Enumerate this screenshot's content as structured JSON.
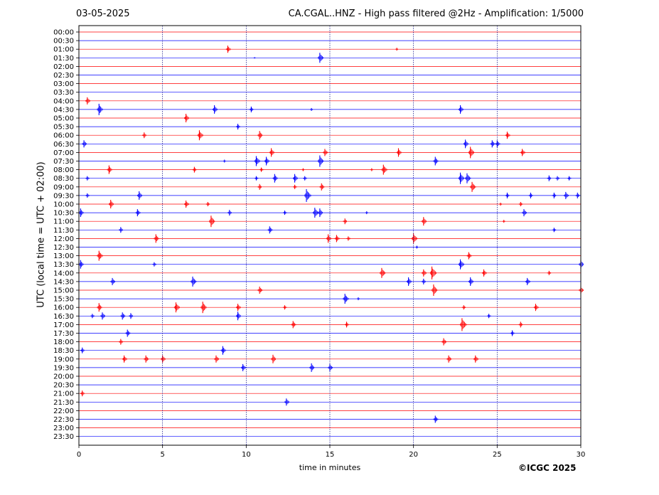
{
  "header": {
    "date": "03-05-2025",
    "title": "CA.CGAL..HNZ - High pass filtered @2Hz - Amplification: 1/5000"
  },
  "footer": {
    "xlabel": "time in minutes",
    "copyright": "©ICGC 2025"
  },
  "chart_data": {
    "type": "line",
    "title": "CA.CGAL..HNZ - High pass filtered @2Hz - Amplification: 1/5000",
    "xlabel": "time in minutes",
    "ylabel": "UTC (local time = UTC + 02:00)",
    "xlim": [
      0,
      30
    ],
    "x_ticks": [
      0,
      5,
      10,
      15,
      20,
      25,
      30
    ],
    "grid": "vertical dotted at 5, 10, 15, 20, 25",
    "colors": {
      "odd_rows": "#ff0000",
      "even_rows": "#0000ff"
    },
    "rows": [
      "00:00",
      "00:30",
      "01:00",
      "01:30",
      "02:00",
      "02:30",
      "03:00",
      "03:30",
      "04:00",
      "04:30",
      "05:00",
      "05:30",
      "06:00",
      "06:30",
      "07:00",
      "07:30",
      "08:00",
      "08:30",
      "09:00",
      "09:30",
      "10:00",
      "10:30",
      "11:00",
      "11:30",
      "12:00",
      "12:30",
      "13:00",
      "13:30",
      "14:00",
      "14:30",
      "15:00",
      "15:30",
      "16:00",
      "16:30",
      "17:00",
      "17:30",
      "18:00",
      "18:30",
      "19:00",
      "19:30",
      "20:00",
      "20:30",
      "21:00",
      "21:30",
      "22:00",
      "22:30",
      "23:00",
      "23:30"
    ],
    "events": [
      [
        2,
        8.9,
        5
      ],
      [
        2,
        19.0,
        2
      ],
      [
        3,
        14.4,
        7
      ],
      [
        3,
        10.5,
        1
      ],
      [
        8,
        0.5,
        5
      ],
      [
        9,
        1.2,
        8
      ],
      [
        9,
        8.1,
        6
      ],
      [
        9,
        10.3,
        4
      ],
      [
        9,
        13.9,
        2
      ],
      [
        9,
        22.8,
        6
      ],
      [
        10,
        6.4,
        6
      ],
      [
        11,
        9.5,
        4
      ],
      [
        12,
        3.9,
        4
      ],
      [
        12,
        7.2,
        7
      ],
      [
        12,
        10.8,
        6
      ],
      [
        12,
        25.6,
        5
      ],
      [
        13,
        0.3,
        5
      ],
      [
        13,
        23.1,
        6
      ],
      [
        13,
        24.7,
        5
      ],
      [
        13,
        25.0,
        5
      ],
      [
        14,
        11.5,
        6
      ],
      [
        14,
        14.7,
        5
      ],
      [
        14,
        19.1,
        6
      ],
      [
        14,
        23.4,
        8
      ],
      [
        14,
        26.5,
        5
      ],
      [
        15,
        10.6,
        7
      ],
      [
        15,
        11.2,
        6
      ],
      [
        15,
        14.4,
        8
      ],
      [
        15,
        21.3,
        6
      ],
      [
        15,
        8.7,
        2
      ],
      [
        16,
        1.8,
        6
      ],
      [
        16,
        6.9,
        4
      ],
      [
        16,
        10.9,
        3
      ],
      [
        16,
        18.2,
        7
      ],
      [
        16,
        17.5,
        2
      ],
      [
        16,
        13.4,
        2
      ],
      [
        17,
        0.5,
        3
      ],
      [
        17,
        10.6,
        3
      ],
      [
        17,
        11.7,
        6
      ],
      [
        17,
        12.9,
        6
      ],
      [
        17,
        13.5,
        3
      ],
      [
        17,
        22.8,
        8
      ],
      [
        17,
        23.2,
        7
      ],
      [
        17,
        28.1,
        4
      ],
      [
        17,
        28.6,
        3
      ],
      [
        17,
        29.3,
        3
      ],
      [
        18,
        10.8,
        4
      ],
      [
        18,
        12.9,
        3
      ],
      [
        18,
        14.5,
        5
      ],
      [
        18,
        23.5,
        7
      ],
      [
        19,
        0.5,
        3
      ],
      [
        19,
        3.6,
        6
      ],
      [
        19,
        13.6,
        9
      ],
      [
        19,
        25.6,
        4
      ],
      [
        19,
        27.0,
        4
      ],
      [
        19,
        28.4,
        4
      ],
      [
        19,
        29.1,
        5
      ],
      [
        19,
        29.8,
        4
      ],
      [
        20,
        1.9,
        6
      ],
      [
        20,
        6.4,
        5
      ],
      [
        20,
        7.7,
        3
      ],
      [
        20,
        26.4,
        3
      ],
      [
        20,
        25.2,
        2
      ],
      [
        21,
        0.1,
        6
      ],
      [
        21,
        3.5,
        5
      ],
      [
        21,
        9.0,
        4
      ],
      [
        21,
        14.1,
        7
      ],
      [
        21,
        14.4,
        6
      ],
      [
        21,
        12.3,
        3
      ],
      [
        21,
        26.6,
        5
      ],
      [
        21,
        17.2,
        2
      ],
      [
        22,
        7.9,
        8
      ],
      [
        22,
        15.9,
        4
      ],
      [
        22,
        20.6,
        6
      ],
      [
        22,
        25.4,
        2
      ],
      [
        23,
        2.5,
        4
      ],
      [
        23,
        11.4,
        5
      ],
      [
        23,
        28.4,
        3
      ],
      [
        24,
        4.6,
        6
      ],
      [
        24,
        14.9,
        6
      ],
      [
        24,
        15.4,
        5
      ],
      [
        24,
        16.1,
        3
      ],
      [
        24,
        20.0,
        7
      ],
      [
        25,
        20.2,
        2
      ],
      [
        26,
        1.2,
        7
      ],
      [
        26,
        23.3,
        5
      ],
      [
        27,
        0.1,
        6
      ],
      [
        27,
        4.5,
        3
      ],
      [
        27,
        22.8,
        7
      ],
      [
        27,
        30.0,
        6
      ],
      [
        28,
        18.1,
        7
      ],
      [
        28,
        20.6,
        5
      ],
      [
        28,
        21.1,
        9
      ],
      [
        28,
        24.2,
        5
      ],
      [
        28,
        28.1,
        3
      ],
      [
        29,
        2.0,
        5
      ],
      [
        29,
        6.8,
        7
      ],
      [
        29,
        19.7,
        6
      ],
      [
        29,
        20.6,
        4
      ],
      [
        29,
        23.4,
        6
      ],
      [
        29,
        26.8,
        5
      ],
      [
        30,
        10.8,
        5
      ],
      [
        30,
        21.2,
        8
      ],
      [
        30,
        30.0,
        5
      ],
      [
        31,
        15.9,
        7
      ],
      [
        31,
        16.7,
        2
      ],
      [
        32,
        1.2,
        6
      ],
      [
        32,
        5.8,
        7
      ],
      [
        32,
        7.4,
        8
      ],
      [
        32,
        9.5,
        5
      ],
      [
        32,
        12.3,
        3
      ],
      [
        32,
        23.0,
        3
      ],
      [
        32,
        27.3,
        5
      ],
      [
        33,
        0.8,
        3
      ],
      [
        33,
        1.4,
        5
      ],
      [
        33,
        2.6,
        5
      ],
      [
        33,
        3.1,
        4
      ],
      [
        33,
        9.5,
        6
      ],
      [
        33,
        24.5,
        3
      ],
      [
        34,
        12.8,
        5
      ],
      [
        34,
        16.0,
        4
      ],
      [
        34,
        22.9,
        9
      ],
      [
        34,
        26.4,
        4
      ],
      [
        35,
        2.9,
        5
      ],
      [
        35,
        25.9,
        4
      ],
      [
        36,
        2.5,
        4
      ],
      [
        36,
        21.8,
        5
      ],
      [
        37,
        0.2,
        4
      ],
      [
        37,
        8.6,
        6
      ],
      [
        38,
        2.7,
        5
      ],
      [
        38,
        4.0,
        5
      ],
      [
        38,
        5.0,
        5
      ],
      [
        38,
        8.2,
        5
      ],
      [
        38,
        11.6,
        6
      ],
      [
        38,
        22.1,
        5
      ],
      [
        38,
        23.7,
        5
      ],
      [
        39,
        9.8,
        5
      ],
      [
        39,
        13.9,
        6
      ],
      [
        39,
        15.0,
        5
      ],
      [
        42,
        0.2,
        4
      ],
      [
        43,
        12.4,
        5
      ],
      [
        45,
        21.3,
        5
      ]
    ]
  }
}
